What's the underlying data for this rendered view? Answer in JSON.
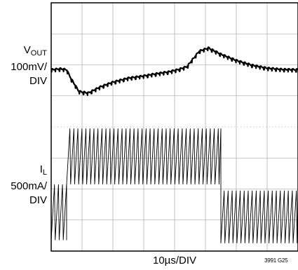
{
  "chart_data": {
    "type": "line",
    "title": "",
    "xlabel": "10µs/DIV",
    "figure_id": "3991 G25",
    "grid": true,
    "divisions": {
      "x": 8,
      "y": 8
    },
    "traces": [
      {
        "name": "VOUT",
        "label_main": "V",
        "label_sub": "OUT",
        "scale": "100mV/",
        "scale_unit": "DIV",
        "description": "output voltage transient: small ripple, dips ~0.7 div at load step, recovers, overshoots ~0.9 div at load release, then settles",
        "x_div": [
          0,
          0.3,
          0.5,
          0.65,
          0.9,
          1.2,
          1.6,
          2.0,
          2.5,
          3.0,
          3.4,
          3.8,
          4.1,
          4.4,
          4.6,
          4.8,
          5.1,
          5.5,
          6.0,
          6.5,
          7.0,
          7.5,
          8.0
        ],
        "y_div": [
          5.85,
          5.88,
          5.85,
          5.55,
          5.15,
          5.1,
          5.3,
          5.45,
          5.58,
          5.65,
          5.72,
          5.78,
          5.85,
          5.95,
          6.2,
          6.45,
          6.55,
          6.35,
          6.15,
          6.0,
          5.9,
          5.86,
          5.85
        ]
      },
      {
        "name": "IL",
        "label_main": "I",
        "label_sub": "L",
        "scale": "500mA/",
        "scale_unit": "DIV",
        "description": "inductor current sawtooth; ripple ~1.7 div p-p; steps up at ~0.5 div, steps down at ~5.5 div",
        "segments": [
          {
            "x_start_div": 0.0,
            "x_end_div": 0.5,
            "min_div": 0.35,
            "max_div": 2.15
          },
          {
            "x_start_div": 0.5,
            "x_end_div": 5.5,
            "min_div": 2.15,
            "max_div": 3.95
          },
          {
            "x_start_div": 5.5,
            "x_end_div": 8.0,
            "min_div": 0.25,
            "max_div": 1.95
          }
        ],
        "period_div": 0.13
      }
    ]
  }
}
